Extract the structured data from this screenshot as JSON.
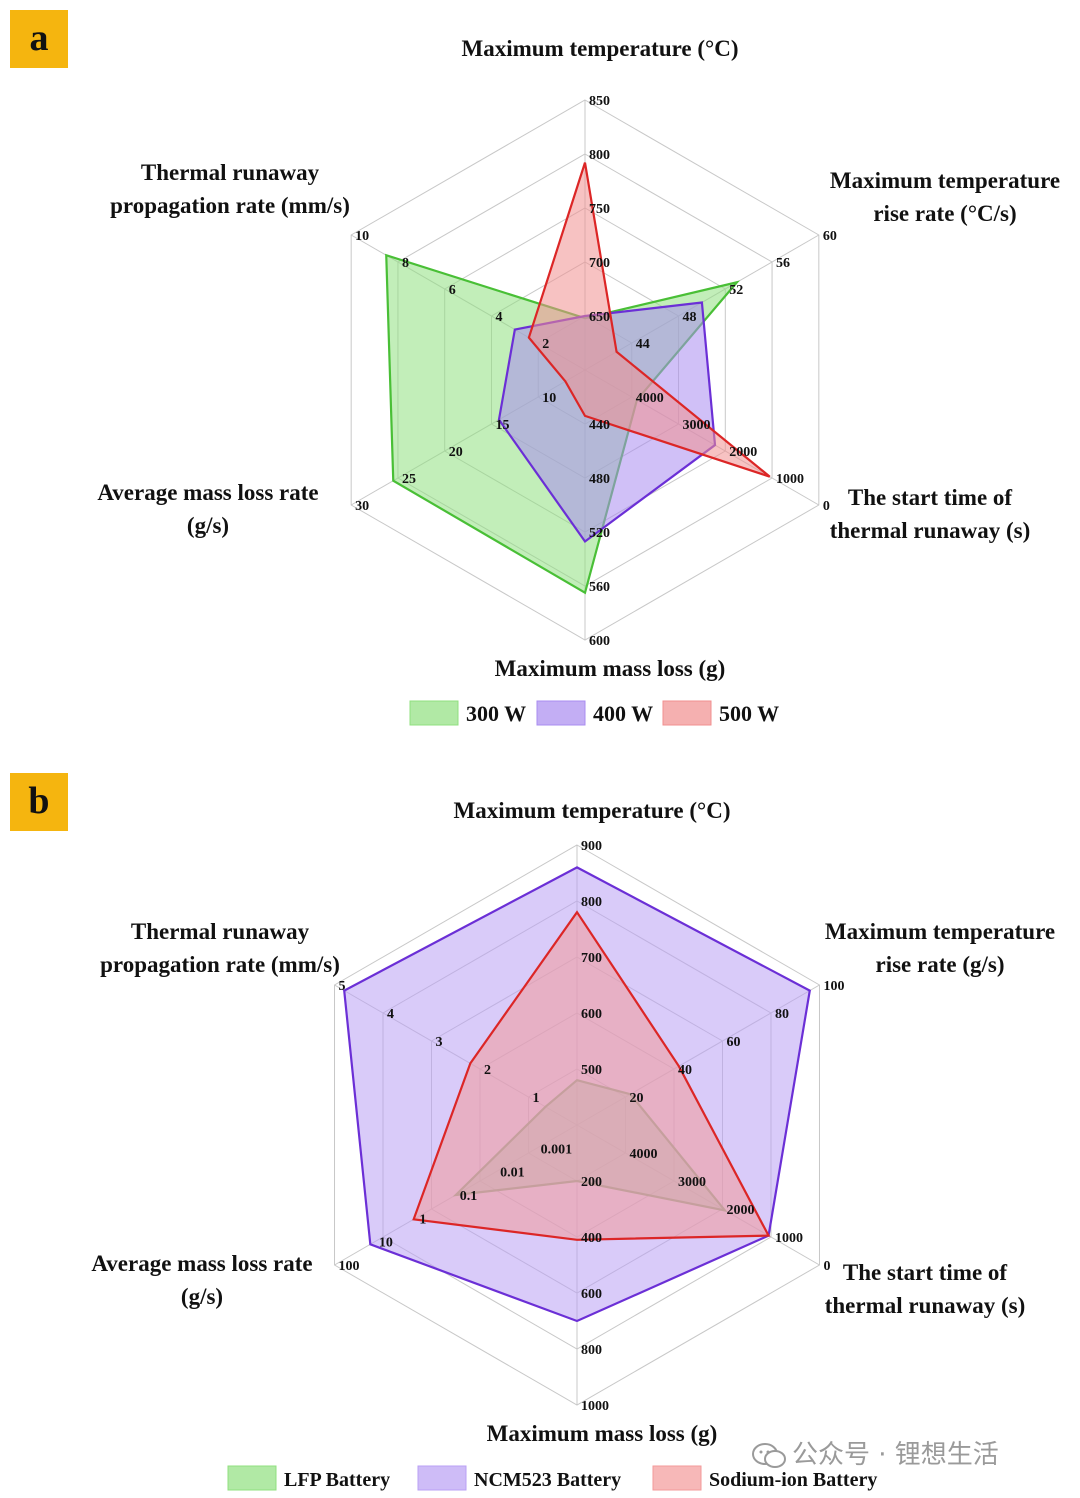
{
  "panels": [
    {
      "label": "a"
    },
    {
      "label": "b"
    }
  ],
  "watermark": "公众号 · 锂想生活",
  "chart_data": [
    {
      "type": "radar",
      "axes": [
        {
          "label": [
            "Maximum temperature (°C)"
          ],
          "ticks": [
            "650",
            "700",
            "750",
            "800",
            "850"
          ],
          "tick_values": [
            650,
            700,
            750,
            800,
            850
          ],
          "min": 600,
          "max": 850
        },
        {
          "label": [
            "Maximum temperature",
            "rise rate (°C/s)"
          ],
          "ticks": [
            "44",
            "48",
            "52",
            "56",
            "60"
          ],
          "tick_values": [
            44,
            48,
            52,
            56,
            60
          ],
          "min": 40,
          "max": 60
        },
        {
          "label": [
            "The start time of",
            "thermal runaway (s)"
          ],
          "ticks": [
            "4000",
            "3000",
            "2000",
            "1000",
            "0"
          ],
          "tick_values": [
            4000,
            3000,
            2000,
            1000,
            0
          ],
          "min": 5000,
          "max": 0
        },
        {
          "label": [
            "Maximum mass loss (g)"
          ],
          "ticks": [
            "440",
            "480",
            "520",
            "560",
            "600"
          ],
          "tick_values": [
            440,
            480,
            520,
            560,
            600
          ],
          "min": 400,
          "max": 600
        },
        {
          "label": [
            "Average mass loss rate",
            "(g/s)"
          ],
          "ticks": [
            "10",
            "15",
            "20",
            "25",
            "30"
          ],
          "tick_values": [
            10,
            15,
            20,
            25,
            30
          ],
          "min": 5,
          "max": 30
        },
        {
          "label": [
            "Thermal runaway",
            "propagation rate (mm/s)"
          ],
          "ticks": [
            "2",
            "4",
            "6",
            "8",
            "10"
          ],
          "tick_values": [
            2,
            4,
            6,
            8,
            10
          ],
          "min": 0,
          "max": 10
        }
      ],
      "series": [
        {
          "name": "300 W",
          "fill": "#90e07f",
          "stroke": "#49bf36",
          "values": [
            648,
            53,
            3890,
            565,
            25.5,
            8.5
          ]
        },
        {
          "name": "400 W",
          "fill": "#a98cf0",
          "stroke": "#6b2fd6",
          "values": [
            650,
            50,
            2220,
            527,
            14.2,
            3.0
          ]
        },
        {
          "name": "500 W",
          "fill": "#f18f8f",
          "stroke": "#dc2626",
          "values": [
            792,
            42.7,
            1050,
            434,
            7.1,
            2.4
          ]
        }
      ]
    },
    {
      "type": "radar",
      "axes": [
        {
          "label": [
            "Maximum temperature (°C)"
          ],
          "ticks": [
            "500",
            "600",
            "700",
            "800",
            "900"
          ],
          "tick_values": [
            500,
            600,
            700,
            800,
            900
          ],
          "min": 400,
          "max": 900
        },
        {
          "label": [
            "Maximum temperature",
            "rise rate (g/s)"
          ],
          "ticks": [
            "20",
            "40",
            "60",
            "80",
            "100"
          ],
          "tick_values": [
            20,
            40,
            60,
            80,
            100
          ],
          "min": 0,
          "max": 100
        },
        {
          "label": [
            "The start time of",
            "thermal runaway (s)"
          ],
          "ticks": [
            "4000",
            "3000",
            "2000",
            "1000",
            "0"
          ],
          "tick_values": [
            4000,
            3000,
            2000,
            1000,
            0
          ],
          "min": 5000,
          "max": 0
        },
        {
          "label": [
            "Maximum mass loss (g)"
          ],
          "ticks": [
            "200",
            "400",
            "600",
            "800",
            "1000"
          ],
          "tick_values": [
            200,
            400,
            600,
            800,
            1000
          ],
          "min": 0,
          "max": 1000
        },
        {
          "label": [
            "Average mass loss rate",
            "(g/s)"
          ],
          "ticks": [
            "0.001",
            "0.01",
            "0.1",
            "1",
            "10",
            "100"
          ],
          "tick_values": [
            0.001,
            0.01,
            0.1,
            1,
            10,
            100
          ],
          "scale": "log",
          "min": 0.0001,
          "max": 100
        },
        {
          "label": [
            "Thermal runaway",
            "propagation rate (mm/s)"
          ],
          "ticks": [
            "1",
            "2",
            "3",
            "4",
            "5"
          ],
          "tick_values": [
            1,
            2,
            3,
            4,
            5
          ],
          "min": 0,
          "max": 5
        }
      ],
      "series": [
        {
          "name": "LFP Battery",
          "fill": "#90e07f",
          "stroke": "#5aa83a",
          "values": [
            480,
            22,
            1950,
            200,
            0.1,
            0.65
          ]
        },
        {
          "name": "NCM523 Battery",
          "fill": "#b9a0f4",
          "stroke": "#6b2fd6",
          "values": [
            860,
            96,
            1050,
            700,
            13,
            4.8
          ]
        },
        {
          "name": "Sodium-ion Battery",
          "fill": "#f39a9a",
          "stroke": "#dc2626",
          "values": [
            780,
            42,
            1050,
            410,
            1.1,
            2.2
          ]
        }
      ]
    }
  ]
}
